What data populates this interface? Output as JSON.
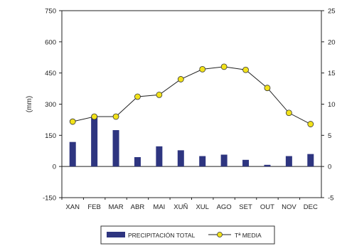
{
  "chart_data": {
    "type": "bar",
    "categories": [
      "XAN",
      "FEB",
      "MAR",
      "ABR",
      "MAI",
      "XUÑ",
      "XUL",
      "AGO",
      "SET",
      "OUT",
      "NOV",
      "DEC"
    ],
    "series": [
      {
        "name": "PRECIPITACIÓN TOTAL",
        "type": "bar",
        "axis": "left",
        "color": "#2e3580",
        "values": [
          118,
          240,
          175,
          45,
          97,
          78,
          50,
          57,
          32,
          8,
          50,
          60
        ]
      },
      {
        "name": "Tª MEDIA",
        "type": "line",
        "axis": "right",
        "color": "#222222",
        "marker_color": "#f2e21a",
        "values": [
          7.2,
          8.0,
          8.0,
          11.2,
          11.5,
          14.0,
          15.6,
          16.0,
          15.5,
          12.6,
          8.6,
          6.8
        ]
      }
    ],
    "ylabel": "(mm)",
    "ylim": [
      -150,
      750
    ],
    "yticks": [
      "-150",
      "0",
      "150",
      "300",
      "450",
      "600",
      "750"
    ],
    "y2lim": [
      -5,
      25
    ],
    "y2ticks": [
      "-5",
      "0",
      "5",
      "10",
      "15",
      "20",
      "25"
    ],
    "legend": {
      "placement": "bottom",
      "entries": [
        "PRECIPITACIÓN TOTAL",
        "Tª MEDIA"
      ]
    },
    "grid": false
  }
}
